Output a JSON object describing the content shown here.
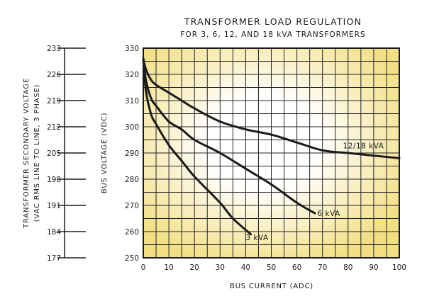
{
  "chart_data": {
    "type": "line",
    "title": "TRANSFORMER LOAD REGULATION",
    "subtitle": "FOR 3, 6, 12, AND 18 kVA TRANSFORMERS",
    "xlabel": "BUS CURRENT (ADC)",
    "ylabel": "BUS VOLTAGE (VDC)",
    "secondary_ylabel": [
      "TRANSFORMER SECONDARY VOLTAGE",
      "(VAC RMS LINE TO LINE, 3 PHASE)"
    ],
    "xlim": [
      0,
      100
    ],
    "ylim": [
      250,
      330
    ],
    "x_ticks": [
      "0",
      "10",
      "20",
      "30",
      "40",
      "50",
      "60",
      "70",
      "80",
      "90",
      "100"
    ],
    "y_ticks": [
      "250",
      "260",
      "270",
      "280",
      "290",
      "300",
      "310",
      "320",
      "330"
    ],
    "secondary_ticks": [
      "233",
      "226",
      "219",
      "212",
      "205",
      "198",
      "191",
      "184",
      "177"
    ],
    "grid": true,
    "colors": {
      "background_center": "#ffffff",
      "background_edge": "#f2df84",
      "grid": "#222222",
      "line": "#1a1a1a"
    },
    "series": [
      {
        "name": "12/18 kVA",
        "x": [
          0,
          1,
          3,
          5,
          10,
          15,
          20,
          30,
          40,
          50,
          60,
          70,
          80,
          90,
          100
        ],
        "y": [
          326,
          322,
          318,
          316,
          313,
          310,
          307,
          302,
          299,
          297,
          294,
          291,
          290,
          289,
          288
        ]
      },
      {
        "name": "6 kVA",
        "x": [
          0,
          1,
          3,
          5,
          10,
          15,
          20,
          30,
          40,
          50,
          60,
          67
        ],
        "y": [
          326,
          318,
          311,
          308,
          302,
          299,
          295,
          290,
          284,
          278,
          271,
          267
        ]
      },
      {
        "name": "3 kVA",
        "x": [
          0,
          1,
          3,
          5,
          10,
          15,
          20,
          30,
          35,
          42
        ],
        "y": [
          326,
          314,
          305,
          301,
          293,
          287,
          281,
          271,
          265,
          259
        ]
      }
    ]
  }
}
